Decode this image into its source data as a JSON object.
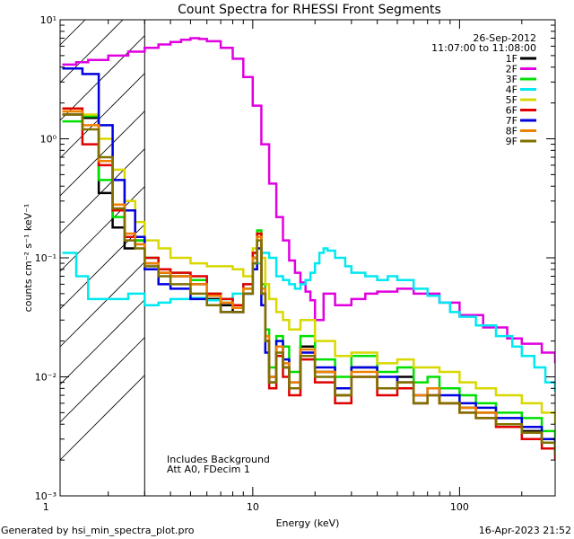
{
  "chart_data": {
    "type": "line",
    "title": "Count Spectra for RHESSI Front Segments",
    "xlabel": "Energy (keV)",
    "ylabel": "counts cm⁻² s⁻¹ keV⁻¹",
    "xscale": "log",
    "yscale": "log",
    "xlim": [
      1.17,
      290
    ],
    "ylim": [
      0.001,
      10
    ],
    "x_ticks": [
      {
        "value": 1,
        "label": "1"
      },
      {
        "value": 10,
        "label": "10"
      },
      {
        "value": 100,
        "label": "100"
      }
    ],
    "y_ticks": [
      {
        "value": 0.001,
        "label": "10⁻³"
      },
      {
        "value": 0.01,
        "label": "10⁻²"
      },
      {
        "value": 0.1,
        "label": "10⁻¹"
      },
      {
        "value": 1,
        "label": "10⁰"
      },
      {
        "value": 10,
        "label": "10¹"
      }
    ],
    "date": "26-Sep-2012",
    "time_range": "11:07:00 to 11:08:00",
    "annotations": [
      "Includes Background",
      "Att A0, FDecim 1"
    ],
    "shaded_region": {
      "x_from": 1.17,
      "x_to": 3.0,
      "style": "diagonal-hatch"
    },
    "vertical_line": 3.0,
    "series": [
      {
        "name": "1F",
        "color": "#000000",
        "x": [
          1.2,
          1.5,
          1.8,
          2.1,
          2.4,
          2.7,
          3.0,
          3.5,
          4,
          5,
          6,
          7,
          8,
          9,
          10,
          10.5,
          11,
          11.5,
          12,
          13,
          14,
          15,
          17,
          20,
          25,
          30,
          40,
          50,
          60,
          70,
          80,
          100,
          120,
          150,
          200,
          250,
          290
        ],
        "y": [
          1.6,
          1.5,
          0.35,
          0.18,
          0.12,
          0.14,
          0.09,
          0.075,
          0.07,
          0.06,
          0.045,
          0.04,
          0.035,
          0.05,
          0.1,
          0.16,
          0.05,
          0.02,
          0.009,
          0.018,
          0.012,
          0.008,
          0.018,
          0.011,
          0.007,
          0.012,
          0.008,
          0.01,
          0.006,
          0.008,
          0.006,
          0.0055,
          0.005,
          0.004,
          0.0035,
          0.0028,
          0.0022
        ]
      },
      {
        "name": "2F",
        "color": "#e000e0",
        "x": [
          1.2,
          1.4,
          1.6,
          2,
          2.5,
          3,
          3.5,
          4,
          4.5,
          5,
          5.5,
          6,
          7,
          8,
          9,
          10,
          11,
          12,
          13,
          14,
          15,
          16,
          17,
          18,
          19,
          20,
          22,
          25,
          30,
          35,
          40,
          50,
          60,
          80,
          100,
          130,
          170,
          200,
          250,
          290
        ],
        "y": [
          4.2,
          4.4,
          4.6,
          5.0,
          5.4,
          5.8,
          6.2,
          6.5,
          6.8,
          7.0,
          6.9,
          6.6,
          5.8,
          4.7,
          3.3,
          1.9,
          0.9,
          0.42,
          0.22,
          0.14,
          0.095,
          0.075,
          0.062,
          0.052,
          0.044,
          0.03,
          0.05,
          0.04,
          0.045,
          0.05,
          0.052,
          0.055,
          0.05,
          0.042,
          0.033,
          0.026,
          0.021,
          0.019,
          0.016,
          0.013
        ]
      },
      {
        "name": "3F",
        "color": "#00e000",
        "x": [
          1.2,
          1.5,
          1.8,
          2.1,
          2.4,
          2.7,
          3.0,
          3.5,
          4,
          5,
          6,
          7,
          8,
          9,
          10,
          10.5,
          11,
          11.5,
          12,
          13,
          14,
          15,
          17,
          20,
          25,
          30,
          40,
          50,
          60,
          70,
          80,
          100,
          120,
          150,
          200,
          250,
          290
        ],
        "y": [
          1.4,
          1.55,
          0.45,
          0.22,
          0.15,
          0.14,
          0.1,
          0.08,
          0.075,
          0.065,
          0.05,
          0.045,
          0.04,
          0.055,
          0.11,
          0.17,
          0.06,
          0.025,
          0.012,
          0.022,
          0.018,
          0.011,
          0.022,
          0.014,
          0.01,
          0.015,
          0.011,
          0.012,
          0.009,
          0.01,
          0.008,
          0.007,
          0.006,
          0.005,
          0.0045,
          0.0035,
          0.0028
        ]
      },
      {
        "name": "4F",
        "color": "#00e8f0",
        "x": [
          1.2,
          1.4,
          1.6,
          2,
          2.5,
          3,
          3.5,
          4,
          5,
          6,
          7,
          8,
          9,
          10,
          11,
          12,
          13,
          14,
          15,
          16,
          17,
          18,
          19,
          20,
          21,
          22,
          23,
          25,
          28,
          30,
          35,
          40,
          45,
          50,
          60,
          70,
          80,
          90,
          100,
          120,
          150,
          180,
          200,
          230,
          260,
          290
        ],
        "y": [
          0.11,
          0.07,
          0.045,
          0.045,
          0.05,
          0.04,
          0.042,
          0.045,
          0.046,
          0.044,
          0.045,
          0.05,
          0.06,
          0.09,
          0.11,
          0.1,
          0.07,
          0.065,
          0.06,
          0.055,
          0.06,
          0.065,
          0.075,
          0.09,
          0.11,
          0.12,
          0.115,
          0.1,
          0.085,
          0.075,
          0.07,
          0.065,
          0.07,
          0.065,
          0.055,
          0.048,
          0.042,
          0.035,
          0.032,
          0.027,
          0.022,
          0.018,
          0.015,
          0.012,
          0.009,
          0.0075
        ]
      },
      {
        "name": "5F",
        "color": "#d8d800",
        "x": [
          1.2,
          1.5,
          1.8,
          2.1,
          2.4,
          2.7,
          3.0,
          3.5,
          4,
          5,
          6,
          7,
          8,
          9,
          10,
          10.5,
          11,
          11.5,
          12,
          13,
          14,
          15,
          17,
          20,
          25,
          30,
          40,
          50,
          60,
          70,
          80,
          100,
          120,
          150,
          200,
          250,
          290
        ],
        "y": [
          1.7,
          1.6,
          1.0,
          0.55,
          0.3,
          0.2,
          0.14,
          0.12,
          0.1,
          0.09,
          0.085,
          0.085,
          0.08,
          0.07,
          0.12,
          0.16,
          0.1,
          0.06,
          0.045,
          0.035,
          0.03,
          0.025,
          0.03,
          0.02,
          0.015,
          0.016,
          0.013,
          0.014,
          0.012,
          0.012,
          0.011,
          0.009,
          0.008,
          0.007,
          0.006,
          0.005,
          0.004
        ]
      },
      {
        "name": "6F",
        "color": "#e00000",
        "x": [
          1.2,
          1.5,
          1.8,
          2.1,
          2.4,
          2.7,
          3.0,
          3.5,
          4,
          5,
          6,
          7,
          8,
          9,
          10,
          10.5,
          11,
          11.5,
          12,
          13,
          14,
          15,
          17,
          20,
          25,
          30,
          40,
          50,
          60,
          70,
          80,
          100,
          120,
          150,
          200,
          250,
          290
        ],
        "y": [
          1.8,
          0.9,
          0.6,
          0.25,
          0.15,
          0.13,
          0.1,
          0.08,
          0.075,
          0.07,
          0.05,
          0.045,
          0.04,
          0.06,
          0.11,
          0.16,
          0.05,
          0.02,
          0.008,
          0.015,
          0.01,
          0.007,
          0.014,
          0.009,
          0.006,
          0.01,
          0.007,
          0.008,
          0.006,
          0.007,
          0.006,
          0.005,
          0.0045,
          0.0038,
          0.003,
          0.0025,
          0.002
        ]
      },
      {
        "name": "7F",
        "color": "#0000e0",
        "x": [
          1.2,
          1.5,
          1.8,
          2.1,
          2.4,
          2.7,
          3.0,
          3.5,
          4,
          5,
          6,
          7,
          8,
          9,
          10,
          10.5,
          11,
          11.5,
          12,
          13,
          14,
          15,
          17,
          20,
          25,
          30,
          40,
          50,
          60,
          70,
          80,
          100,
          120,
          150,
          200,
          250,
          290
        ],
        "y": [
          3.9,
          3.5,
          1.3,
          0.45,
          0.25,
          0.15,
          0.08,
          0.06,
          0.055,
          0.045,
          0.04,
          0.035,
          0.035,
          0.05,
          0.08,
          0.12,
          0.04,
          0.016,
          0.01,
          0.02,
          0.014,
          0.009,
          0.016,
          0.012,
          0.008,
          0.012,
          0.01,
          0.009,
          0.007,
          0.008,
          0.007,
          0.006,
          0.0055,
          0.0045,
          0.0038,
          0.003,
          0.0024
        ]
      },
      {
        "name": "8F",
        "color": "#f08000",
        "x": [
          1.2,
          1.5,
          1.8,
          2.1,
          2.4,
          2.7,
          3.0,
          3.5,
          4,
          5,
          6,
          7,
          8,
          9,
          10,
          10.5,
          11,
          11.5,
          12,
          13,
          14,
          15,
          17,
          20,
          25,
          30,
          40,
          50,
          60,
          70,
          80,
          100,
          120,
          150,
          200,
          250,
          290
        ],
        "y": [
          1.7,
          1.3,
          0.65,
          0.28,
          0.16,
          0.13,
          0.09,
          0.075,
          0.07,
          0.06,
          0.048,
          0.042,
          0.038,
          0.055,
          0.1,
          0.15,
          0.055,
          0.022,
          0.01,
          0.018,
          0.013,
          0.009,
          0.017,
          0.011,
          0.007,
          0.011,
          0.008,
          0.009,
          0.007,
          0.008,
          0.006,
          0.0055,
          0.005,
          0.004,
          0.0034,
          0.0028,
          0.0022
        ]
      },
      {
        "name": "9F",
        "color": "#807000",
        "x": [
          1.2,
          1.5,
          1.8,
          2.1,
          2.4,
          2.7,
          3.0,
          3.5,
          4,
          5,
          6,
          7,
          8,
          9,
          10,
          10.5,
          11,
          11.5,
          12,
          13,
          14,
          15,
          17,
          20,
          25,
          30,
          40,
          50,
          60,
          70,
          80,
          100,
          120,
          150,
          200,
          250,
          290
        ],
        "y": [
          1.6,
          1.2,
          0.7,
          0.26,
          0.14,
          0.12,
          0.085,
          0.07,
          0.06,
          0.05,
          0.04,
          0.035,
          0.035,
          0.05,
          0.09,
          0.14,
          0.05,
          0.02,
          0.009,
          0.016,
          0.012,
          0.008,
          0.015,
          0.01,
          0.007,
          0.01,
          0.008,
          0.009,
          0.006,
          0.007,
          0.006,
          0.005,
          0.0045,
          0.004,
          0.0034,
          0.0028,
          0.0022
        ]
      }
    ]
  },
  "footer": {
    "generated_by": "Generated by hsi_min_spectra_plot.pro",
    "timestamp": "16-Apr-2023 21:52"
  }
}
